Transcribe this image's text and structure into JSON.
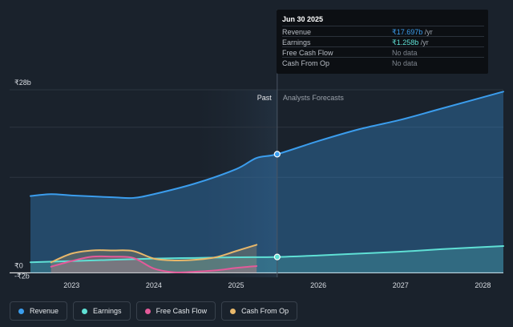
{
  "tooltip": {
    "date": "Jun 30 2025",
    "rows": [
      {
        "label": "Revenue",
        "value": "₹17.697b",
        "unit": " /yr",
        "color": "#3b9ded"
      },
      {
        "label": "Earnings",
        "value": "₹1.258b",
        "unit": " /yr",
        "color": "#5fe0d5"
      },
      {
        "label": "Free Cash Flow",
        "value": "No data",
        "unit": "",
        "color": "#7e858e"
      },
      {
        "label": "Cash From Op",
        "value": "No data",
        "unit": "",
        "color": "#7e858e"
      }
    ]
  },
  "legend": [
    {
      "label": "Revenue",
      "color": "#3b9ded"
    },
    {
      "label": "Earnings",
      "color": "#5fe0d5"
    },
    {
      "label": "Free Cash Flow",
      "color": "#e45a9a"
    },
    {
      "label": "Cash From Op",
      "color": "#e8b86b"
    }
  ],
  "chart_data": {
    "type": "line",
    "y_labels": [
      "₹28b",
      "₹0",
      "-₹2b"
    ],
    "ylim": [
      -2,
      28
    ],
    "xlim": [
      2022.5,
      2028.25
    ],
    "x_ticks": [
      "2023",
      "2024",
      "2025",
      "2026",
      "2027",
      "2028"
    ],
    "divider_x": 2025.5,
    "past_label": "Past",
    "forecast_label": "Analysts Forecasts",
    "highlight_start": 2024.5,
    "grid": true,
    "series": [
      {
        "name": "Revenue",
        "color": "#3b9ded",
        "fill": true,
        "points": [
          [
            2022.5,
            11.0
          ],
          [
            2022.75,
            11.3
          ],
          [
            2023.0,
            11.1
          ],
          [
            2023.5,
            10.8
          ],
          [
            2023.75,
            10.7
          ],
          [
            2024.0,
            11.3
          ],
          [
            2024.5,
            13.0
          ],
          [
            2025.0,
            15.3
          ],
          [
            2025.25,
            17.1
          ],
          [
            2025.5,
            17.697
          ],
          [
            2026.0,
            19.8
          ],
          [
            2026.5,
            21.7
          ],
          [
            2027.0,
            23.2
          ],
          [
            2027.5,
            25.0
          ],
          [
            2028.25,
            27.7
          ]
        ]
      },
      {
        "name": "Earnings",
        "color": "#5fe0d5",
        "fill": true,
        "points": [
          [
            2022.5,
            0.4
          ],
          [
            2023.0,
            0.6
          ],
          [
            2023.5,
            0.8
          ],
          [
            2024.0,
            1.0
          ],
          [
            2024.5,
            1.1
          ],
          [
            2025.0,
            1.2
          ],
          [
            2025.5,
            1.258
          ],
          [
            2026.0,
            1.5
          ],
          [
            2026.5,
            1.8
          ],
          [
            2027.0,
            2.1
          ],
          [
            2027.5,
            2.5
          ],
          [
            2028.25,
            3.0
          ]
        ]
      },
      {
        "name": "Free Cash Flow",
        "color": "#e45a9a",
        "fill": true,
        "points": [
          [
            2022.75,
            -0.3
          ],
          [
            2023.0,
            0.6
          ],
          [
            2023.25,
            1.3
          ],
          [
            2023.5,
            1.3
          ],
          [
            2023.75,
            1.1
          ],
          [
            2024.0,
            -0.6
          ],
          [
            2024.25,
            -1.2
          ],
          [
            2024.5,
            -1.1
          ],
          [
            2024.75,
            -0.9
          ],
          [
            2025.0,
            -0.5
          ],
          [
            2025.25,
            -0.2
          ]
        ]
      },
      {
        "name": "Cash From Op",
        "color": "#e8b86b",
        "fill": true,
        "points": [
          [
            2022.75,
            0.4
          ],
          [
            2023.0,
            1.8
          ],
          [
            2023.25,
            2.3
          ],
          [
            2023.5,
            2.3
          ],
          [
            2023.75,
            2.2
          ],
          [
            2024.0,
            1.0
          ],
          [
            2024.25,
            0.7
          ],
          [
            2024.5,
            0.8
          ],
          [
            2024.75,
            1.2
          ],
          [
            2025.0,
            2.2
          ],
          [
            2025.25,
            3.2
          ]
        ]
      }
    ],
    "markers": [
      {
        "series": "Revenue",
        "x": 2025.5,
        "y": 17.697
      },
      {
        "series": "Earnings",
        "x": 2025.5,
        "y": 1.258
      }
    ]
  }
}
